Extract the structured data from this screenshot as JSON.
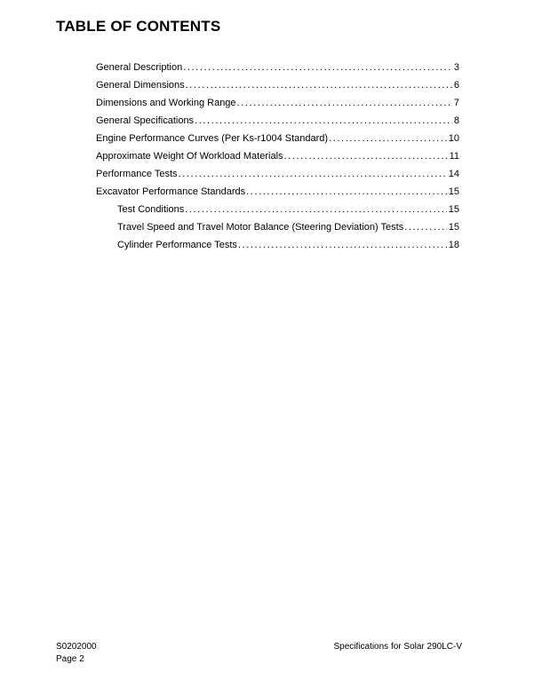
{
  "page": {
    "title": "TABLE OF CONTENTS"
  },
  "toc": {
    "entries": [
      {
        "label": "General Description",
        "page": "3",
        "indent": 0
      },
      {
        "label": "General Dimensions",
        "page": "6",
        "indent": 0
      },
      {
        "label": "Dimensions and Working Range",
        "page": "7",
        "indent": 0
      },
      {
        "label": "General Specifications",
        "page": "8",
        "indent": 0
      },
      {
        "label": "Engine Performance Curves (Per Ks-r1004 Standard)",
        "page": "10",
        "indent": 0
      },
      {
        "label": "Approximate Weight Of Workload Materials",
        "page": "11",
        "indent": 0
      },
      {
        "label": "Performance Tests",
        "page": "14",
        "indent": 0
      },
      {
        "label": "Excavator Performance Standards",
        "page": "15",
        "indent": 0
      },
      {
        "label": "Test Conditions",
        "page": "15",
        "indent": 1
      },
      {
        "label": "Travel Speed and Travel Motor Balance (Steering Deviation) Tests",
        "page": "15",
        "indent": 1
      },
      {
        "label": "Cylinder Performance Tests",
        "page": "18",
        "indent": 1
      }
    ]
  },
  "footer": {
    "doc_number": "S0202000",
    "page_label": "Page 2",
    "right_text": "Specifications for Solar 290LC-V"
  }
}
